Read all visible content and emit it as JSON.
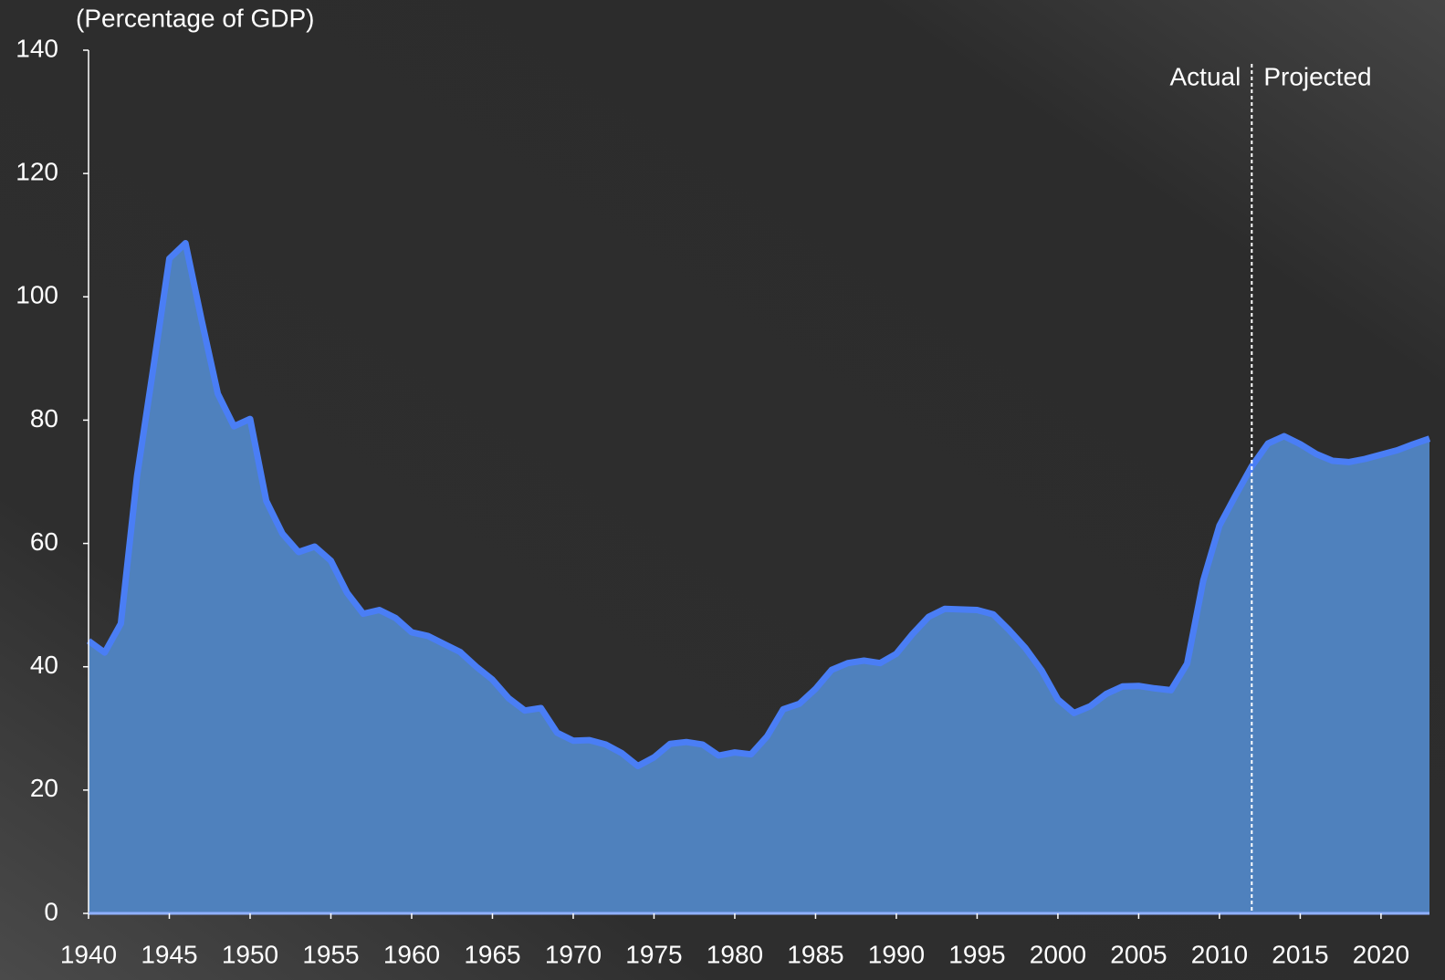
{
  "chart_data": {
    "type": "area",
    "title": "(Percentage of GDP)",
    "x": [
      1940,
      1941,
      1942,
      1943,
      1944,
      1945,
      1946,
      1947,
      1948,
      1949,
      1950,
      1951,
      1952,
      1953,
      1954,
      1955,
      1956,
      1957,
      1958,
      1959,
      1960,
      1961,
      1962,
      1963,
      1964,
      1965,
      1966,
      1967,
      1968,
      1969,
      1970,
      1971,
      1972,
      1973,
      1974,
      1975,
      1976,
      1977,
      1978,
      1979,
      1980,
      1981,
      1982,
      1983,
      1984,
      1985,
      1986,
      1987,
      1988,
      1989,
      1990,
      1991,
      1992,
      1993,
      1994,
      1995,
      1996,
      1997,
      1998,
      1999,
      2000,
      2001,
      2002,
      2003,
      2004,
      2005,
      2006,
      2007,
      2008,
      2009,
      2010,
      2011,
      2012,
      2013,
      2014,
      2015,
      2016,
      2017,
      2018,
      2019,
      2020,
      2021,
      2022,
      2023
    ],
    "series": [
      {
        "color": "#4f81bd",
        "line_color": "#4a7ef5",
        "values": [
          44.2,
          42.3,
          47.0,
          70.9,
          88.3,
          106.2,
          108.7,
          96.2,
          84.3,
          79.0,
          80.2,
          66.9,
          61.6,
          58.6,
          59.5,
          57.2,
          52.0,
          48.6,
          49.2,
          47.9,
          45.6,
          45.0,
          43.7,
          42.4,
          40.0,
          37.9,
          34.9,
          32.9,
          33.3,
          29.3,
          28.0,
          28.1,
          27.4,
          26.0,
          23.9,
          25.3,
          27.5,
          27.8,
          27.4,
          25.6,
          26.1,
          25.8,
          28.7,
          33.1,
          34.0,
          36.4,
          39.5,
          40.6,
          41.0,
          40.6,
          42.1,
          45.3,
          48.1,
          49.4,
          49.3,
          49.2,
          48.5,
          45.9,
          43.0,
          39.4,
          34.7,
          32.5,
          33.6,
          35.6,
          36.8,
          36.9,
          36.5,
          36.2,
          40.5,
          54.0,
          62.9,
          67.8,
          72.5,
          76.2,
          77.4,
          76.1,
          74.5,
          73.4,
          73.2,
          73.7,
          74.4,
          75.1,
          76.1,
          77.0
        ]
      }
    ],
    "xlim": [
      1940,
      2023
    ],
    "xticks": [
      1940,
      1945,
      1950,
      1955,
      1960,
      1965,
      1970,
      1975,
      1980,
      1985,
      1990,
      1995,
      2000,
      2005,
      2010,
      2015,
      2020
    ],
    "ylim": [
      0,
      140
    ],
    "yticks": [
      0,
      20,
      40,
      60,
      80,
      100,
      120,
      140
    ],
    "divider": {
      "x": 2012,
      "left_label": "Actual",
      "right_label": "Projected"
    }
  }
}
